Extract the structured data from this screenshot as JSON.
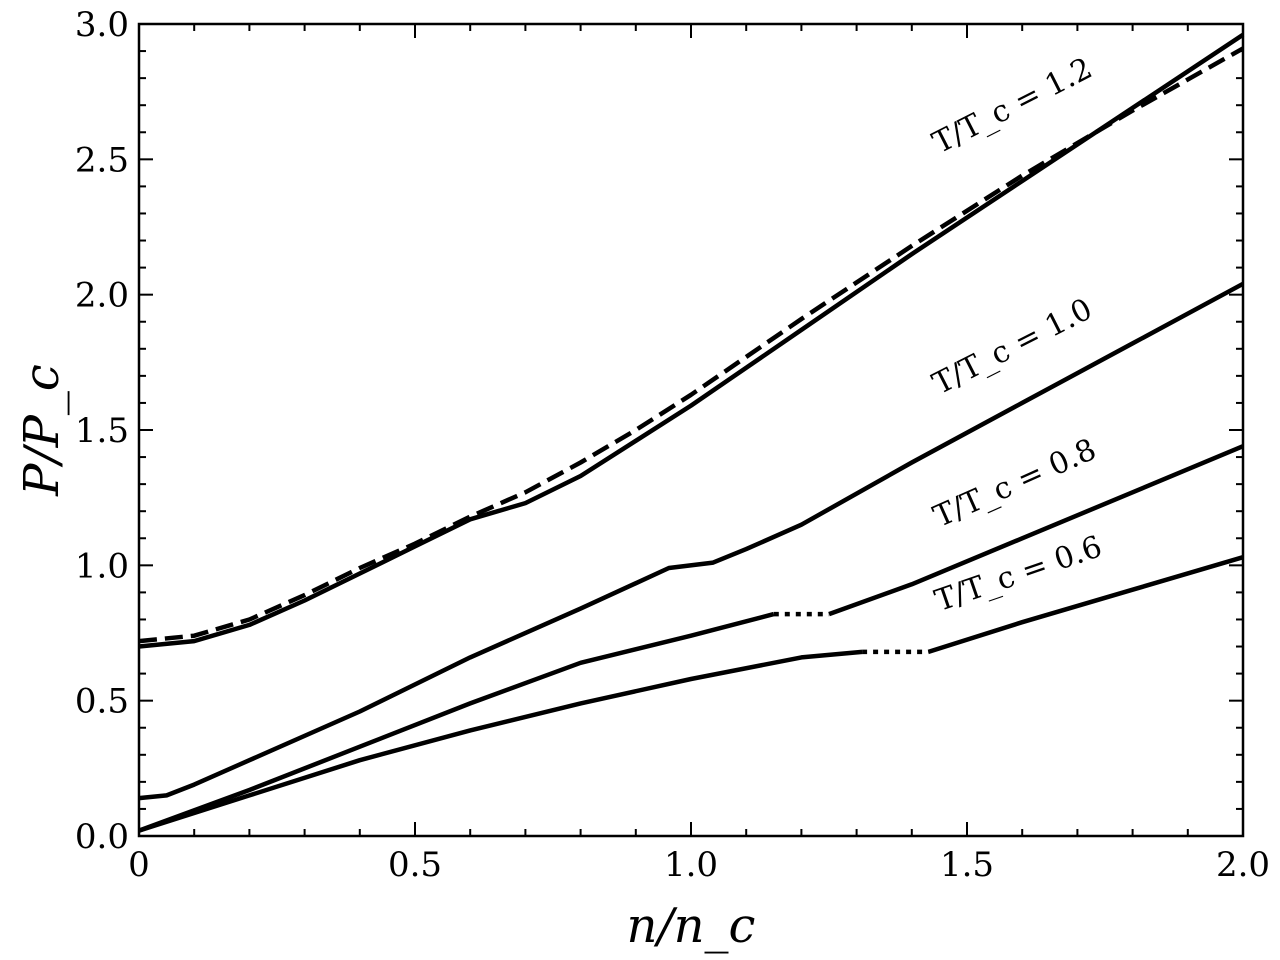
{
  "chart_data": {
    "type": "line",
    "title": "",
    "xlabel": "n/n_c",
    "ylabel": "P/P_c",
    "xlim": [
      0,
      2.0
    ],
    "ylim": [
      0,
      3.0
    ],
    "xticks": [
      0,
      0.5,
      1.0,
      1.5,
      2.0
    ],
    "xtick_labels": [
      "0",
      "0.5",
      "1.0",
      "1.5",
      "2.0"
    ],
    "yticks": [
      0,
      0.5,
      1.0,
      1.5,
      2.0,
      2.5,
      3.0
    ],
    "ytick_labels": [
      "0.0",
      "0.5",
      "1.0",
      "1.5",
      "2.0",
      "2.5",
      "3.0"
    ],
    "grid": false,
    "series": [
      {
        "name": "T/T_c = 1.2",
        "style": "solid",
        "points": [
          [
            0,
            0.7
          ],
          [
            0.1,
            0.72
          ],
          [
            0.2,
            0.78
          ],
          [
            0.3,
            0.87
          ],
          [
            0.4,
            0.97
          ],
          [
            0.5,
            1.07
          ],
          [
            0.6,
            1.17
          ],
          [
            0.65,
            1.2
          ],
          [
            0.7,
            1.23
          ],
          [
            0.8,
            1.33
          ],
          [
            0.9,
            1.46
          ],
          [
            1.0,
            1.59
          ],
          [
            1.2,
            1.87
          ],
          [
            1.4,
            2.15
          ],
          [
            1.6,
            2.42
          ],
          [
            1.8,
            2.69
          ],
          [
            2.0,
            2.96
          ]
        ]
      },
      {
        "name": "",
        "style": "dashed",
        "points": [
          [
            0,
            0.72
          ],
          [
            0.1,
            0.74
          ],
          [
            0.2,
            0.8
          ],
          [
            0.3,
            0.89
          ],
          [
            0.4,
            0.99
          ],
          [
            0.5,
            1.08
          ],
          [
            0.6,
            1.18
          ],
          [
            0.7,
            1.27
          ],
          [
            0.8,
            1.38
          ],
          [
            0.9,
            1.5
          ],
          [
            1.0,
            1.63
          ],
          [
            1.2,
            1.91
          ],
          [
            1.4,
            2.18
          ],
          [
            1.6,
            2.44
          ],
          [
            1.8,
            2.68
          ],
          [
            2.0,
            2.91
          ]
        ]
      },
      {
        "name": "T/T_c = 1.0",
        "style": "solid",
        "points": [
          [
            0,
            0.14
          ],
          [
            0.05,
            0.15
          ],
          [
            0.1,
            0.19
          ],
          [
            0.2,
            0.28
          ],
          [
            0.4,
            0.46
          ],
          [
            0.6,
            0.66
          ],
          [
            0.8,
            0.84
          ],
          [
            0.96,
            0.99
          ],
          [
            1.04,
            1.01
          ],
          [
            1.1,
            1.06
          ],
          [
            1.2,
            1.15
          ],
          [
            1.4,
            1.38
          ],
          [
            1.6,
            1.6
          ],
          [
            1.8,
            1.82
          ],
          [
            2.0,
            2.04
          ]
        ]
      },
      {
        "name": "T/T_c = 0.8",
        "style": "solid",
        "points": [
          [
            0,
            0.02
          ],
          [
            0.2,
            0.17
          ],
          [
            0.4,
            0.33
          ],
          [
            0.6,
            0.49
          ],
          [
            0.8,
            0.64
          ],
          [
            1.0,
            0.74
          ],
          [
            1.15,
            0.82
          ]
        ]
      },
      {
        "name": "",
        "style": "dotted",
        "points": [
          [
            1.15,
            0.82
          ],
          [
            1.25,
            0.82
          ]
        ]
      },
      {
        "name": "",
        "style": "solid",
        "points": [
          [
            1.25,
            0.82
          ],
          [
            1.4,
            0.93
          ],
          [
            1.6,
            1.1
          ],
          [
            1.8,
            1.27
          ],
          [
            2.0,
            1.44
          ]
        ]
      },
      {
        "name": "T/T_c = 0.6",
        "style": "solid",
        "points": [
          [
            0,
            0.02
          ],
          [
            0.2,
            0.15
          ],
          [
            0.4,
            0.28
          ],
          [
            0.6,
            0.39
          ],
          [
            0.8,
            0.49
          ],
          [
            1.0,
            0.58
          ],
          [
            1.2,
            0.66
          ],
          [
            1.31,
            0.68
          ]
        ]
      },
      {
        "name": "",
        "style": "dotted",
        "points": [
          [
            1.31,
            0.68
          ],
          [
            1.43,
            0.68
          ]
        ]
      },
      {
        "name": "",
        "style": "solid",
        "points": [
          [
            1.43,
            0.68
          ],
          [
            1.6,
            0.79
          ],
          [
            1.8,
            0.91
          ],
          [
            2.0,
            1.03
          ]
        ]
      }
    ],
    "annotations": [
      {
        "text": "T/T_c = 1.2",
        "x": 1.45,
        "y": 2.52,
        "angle": -27
      },
      {
        "text": "T/T_c = 1.0",
        "x": 1.45,
        "y": 1.63,
        "angle": -27
      },
      {
        "text": "T/T_c = 0.8",
        "x": 1.45,
        "y": 1.14,
        "angle": -24
      },
      {
        "text": "T/T_c = 0.6",
        "x": 1.45,
        "y": 0.83,
        "angle": -19
      }
    ]
  }
}
